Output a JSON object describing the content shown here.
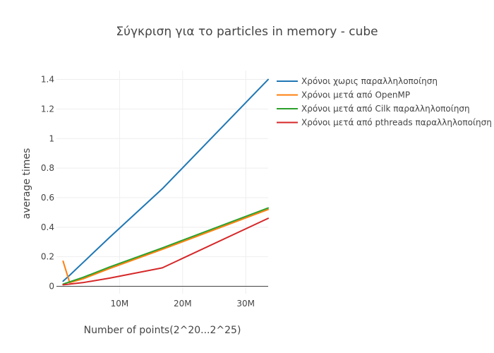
{
  "chart_data": {
    "type": "line",
    "title": "Σύγκριση για το particles in memory - cube",
    "xlabel": "Number of points(2^20...2^25)",
    "ylabel": "average times",
    "xlim": [
      0,
      33554432
    ],
    "ylim": [
      -0.05,
      1.46
    ],
    "x_ticks": [
      {
        "value": 10000000,
        "label": "10M"
      },
      {
        "value": 20000000,
        "label": "20M"
      },
      {
        "value": 30000000,
        "label": "30M"
      }
    ],
    "y_ticks": [
      {
        "value": 0,
        "label": "0"
      },
      {
        "value": 0.2,
        "label": "0.2"
      },
      {
        "value": 0.4,
        "label": "0.4"
      },
      {
        "value": 0.6,
        "label": "0.6"
      },
      {
        "value": 0.8,
        "label": "0.8"
      },
      {
        "value": 1,
        "label": "1"
      },
      {
        "value": 1.2,
        "label": "1.2"
      },
      {
        "value": 1.4,
        "label": "1.4"
      }
    ],
    "grid": {
      "x": true,
      "y": true
    },
    "legend_position": "top-right",
    "x": [
      1048576,
      2097152,
      4194304,
      8388608,
      16777216,
      33554432
    ],
    "series": [
      {
        "name": "Χρόνοι χωρις παραλληλοποίηση",
        "color": "#1f77b4",
        "values": [
          0.035,
          0.075,
          0.16,
          0.33,
          0.66,
          1.4
        ]
      },
      {
        "name": "Χρόνοι μετά από OpenMP",
        "color": "#ff7f0e",
        "values": [
          0.17,
          0.025,
          0.05,
          0.12,
          0.25,
          0.52
        ]
      },
      {
        "name": "Χρόνοι μετά από Cilk παραλληλοποίηση",
        "color": "#2ca02c",
        "values": [
          0.015,
          0.03,
          0.06,
          0.13,
          0.26,
          0.53
        ]
      },
      {
        "name": "Χρόνοι μετά από pthreads παραλληλοποίηση",
        "color": "#d62728",
        "values": [
          0.01,
          0.015,
          0.025,
          0.055,
          0.125,
          0.46
        ]
      }
    ]
  }
}
